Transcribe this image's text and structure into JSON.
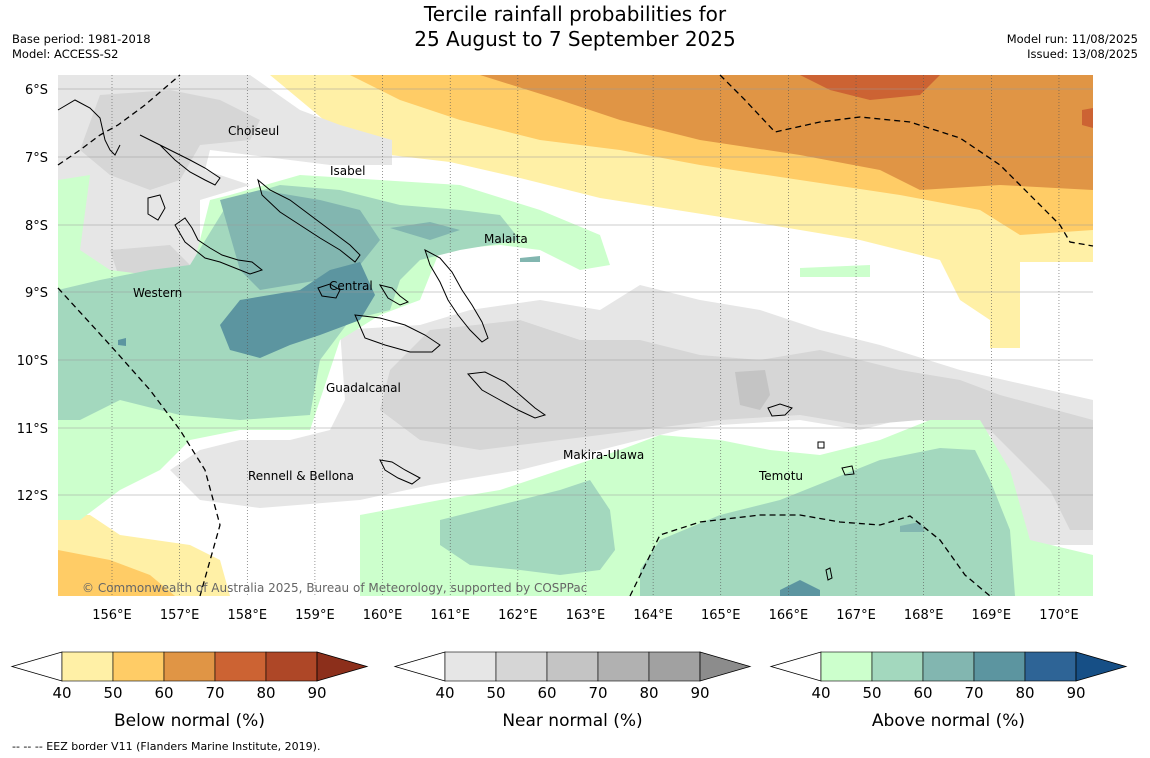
{
  "title": {
    "line1": "Tercile rainfall probabilities for",
    "line2": "25 August to 7 September 2025"
  },
  "meta_left": {
    "base_period": "Base period: 1981-2018",
    "model": "Model: ACCESS-S2"
  },
  "meta_right": {
    "model_run": "Model run: 11/08/2025",
    "issued": "Issued: 13/08/2025"
  },
  "map": {
    "lat_labels": [
      "6°S",
      "7°S",
      "8°S",
      "9°S",
      "10°S",
      "11°S",
      "12°S"
    ],
    "lon_labels": [
      "156°E",
      "157°E",
      "158°E",
      "159°E",
      "160°E",
      "161°E",
      "162°E",
      "163°E",
      "164°E",
      "165°E",
      "166°E",
      "167°E",
      "168°E",
      "169°E",
      "170°E"
    ],
    "province_labels": [
      "Choiseul",
      "Isabel",
      "Malaita",
      "Western",
      "Central",
      "Guadalcanal",
      "Makira-Ulawa",
      "Rennell & Bellona",
      "Temotu"
    ],
    "copyright": "© Commonwealth of Australia 2025, Bureau of Meteorology, supported by COSPPac",
    "colors": {
      "below": [
        "#fff0a6",
        "#ffcc66",
        "#e09545",
        "#cc6333",
        "#ae4727",
        "#8c2f1b"
      ],
      "near": [
        "#e6e6e6",
        "#d6d6d6",
        "#c4c4c4",
        "#b1b1b1",
        "#a1a1a1",
        "#8c8c8c"
      ],
      "above": [
        "#ccffcc",
        "#a3d8be",
        "#82b6b0",
        "#5c95a0",
        "#2e6496",
        "#164f86"
      ]
    }
  },
  "colorbars": [
    {
      "title": "Below normal (%)",
      "ticks": [
        "40",
        "50",
        "60",
        "70",
        "80",
        "90"
      ]
    },
    {
      "title": "Near normal (%)",
      "ticks": [
        "40",
        "50",
        "60",
        "70",
        "80",
        "90"
      ]
    },
    {
      "title": "Above normal (%)",
      "ticks": [
        "40",
        "50",
        "60",
        "70",
        "80",
        "90"
      ]
    }
  ],
  "footer": "--  --  -- EEZ border V11 (Flanders Marine Institute, 2019)."
}
